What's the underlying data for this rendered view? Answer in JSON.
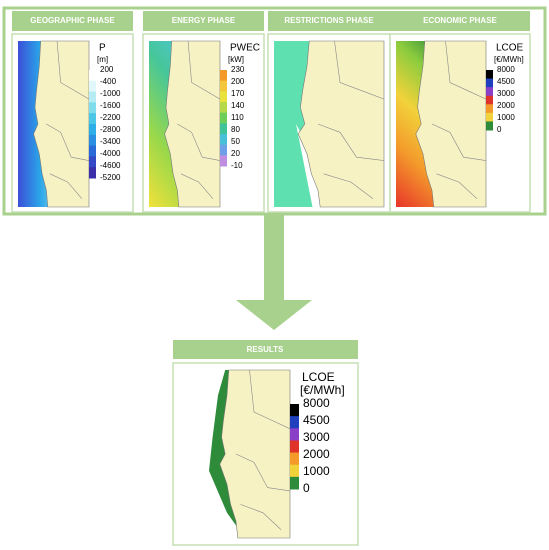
{
  "phases": [
    {
      "title": "GEOGRAPHIC PHASE",
      "legend_title": "P",
      "legend_unit": "[m]",
      "legend_labels": [
        "200",
        "-400",
        "-1000",
        "-1600",
        "-2200",
        "-2800",
        "-3400",
        "-4000",
        "-4600",
        "-5200"
      ]
    },
    {
      "title": "ENERGY PHASE",
      "legend_title": "PWEC",
      "legend_unit": "[kW]",
      "legend_labels": [
        "230",
        "200",
        "170",
        "140",
        "110",
        "80",
        "50",
        "20",
        "-10"
      ]
    },
    {
      "title": "RESTRICTIONS PHASE"
    },
    {
      "title": "ECONOMIC PHASE",
      "legend_title": "LCOE",
      "legend_unit": "[€/MWh]",
      "legend_labels": [
        "8000",
        "4500",
        "3000",
        "2000",
        "1000",
        "0"
      ]
    }
  ],
  "results": {
    "title": "RESULTS",
    "legend_title": "LCOE",
    "legend_unit": "[€/MWh]",
    "legend_labels": [
      "8000",
      "4500",
      "3000",
      "2000",
      "1000",
      "0"
    ]
  }
}
